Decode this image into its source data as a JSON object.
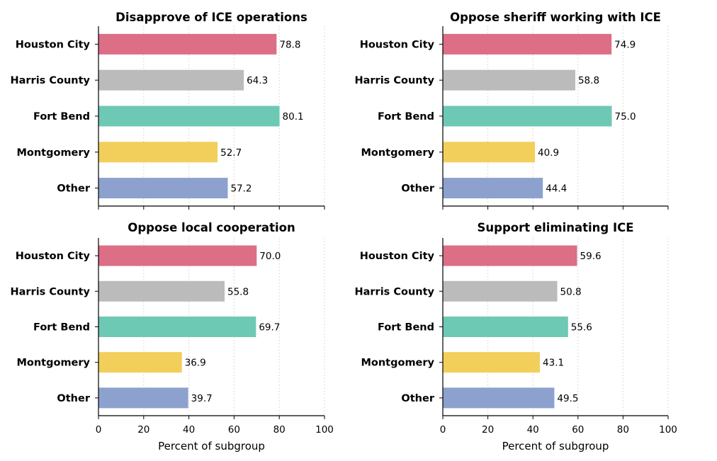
{
  "colors": {
    "Houston City": "#dc6e86",
    "Harris County": "#bbbbbb",
    "Fort Bend": "#6ec9b4",
    "Montgomery": "#f2cf5b",
    "Other": "#8da1ce"
  },
  "chart_data": [
    {
      "type": "bar",
      "orientation": "horizontal",
      "title": "Disapprove of ICE operations",
      "categories": [
        "Houston City",
        "Harris County",
        "Fort Bend",
        "Montgomery",
        "Other"
      ],
      "values": [
        78.8,
        64.3,
        80.1,
        52.7,
        57.2
      ],
      "value_labels": [
        "78.8",
        "64.3",
        "80.1",
        "52.7",
        "57.2"
      ],
      "xlim": [
        0,
        100
      ],
      "xticks": [
        0,
        20,
        40,
        60,
        80,
        100
      ],
      "xtick_labels_visible": false,
      "xlabel": "",
      "grid": "x-dotted"
    },
    {
      "type": "bar",
      "orientation": "horizontal",
      "title": "Oppose sheriff working with ICE",
      "categories": [
        "Houston City",
        "Harris County",
        "Fort Bend",
        "Montgomery",
        "Other"
      ],
      "values": [
        74.9,
        58.8,
        75.0,
        40.9,
        44.4
      ],
      "value_labels": [
        "74.9",
        "58.8",
        "75.0",
        "40.9",
        "44.4"
      ],
      "xlim": [
        0,
        100
      ],
      "xticks": [
        0,
        20,
        40,
        60,
        80,
        100
      ],
      "xtick_labels_visible": false,
      "xlabel": "",
      "grid": "x-dotted"
    },
    {
      "type": "bar",
      "orientation": "horizontal",
      "title": "Oppose local cooperation",
      "categories": [
        "Houston City",
        "Harris County",
        "Fort Bend",
        "Montgomery",
        "Other"
      ],
      "values": [
        70.0,
        55.8,
        69.7,
        36.9,
        39.7
      ],
      "value_labels": [
        "70.0",
        "55.8",
        "69.7",
        "36.9",
        "39.7"
      ],
      "xlim": [
        0,
        100
      ],
      "xticks": [
        0,
        20,
        40,
        60,
        80,
        100
      ],
      "xtick_labels_visible": true,
      "xlabel": "Percent of subgroup",
      "grid": "x-dotted"
    },
    {
      "type": "bar",
      "orientation": "horizontal",
      "title": "Support eliminating ICE",
      "categories": [
        "Houston City",
        "Harris County",
        "Fort Bend",
        "Montgomery",
        "Other"
      ],
      "values": [
        59.6,
        50.8,
        55.6,
        43.1,
        49.5
      ],
      "value_labels": [
        "59.6",
        "50.8",
        "55.6",
        "43.1",
        "49.5"
      ],
      "xlim": [
        0,
        100
      ],
      "xticks": [
        0,
        20,
        40,
        60,
        80,
        100
      ],
      "xtick_labels_visible": true,
      "xlabel": "Percent of subgroup",
      "grid": "x-dotted"
    }
  ]
}
